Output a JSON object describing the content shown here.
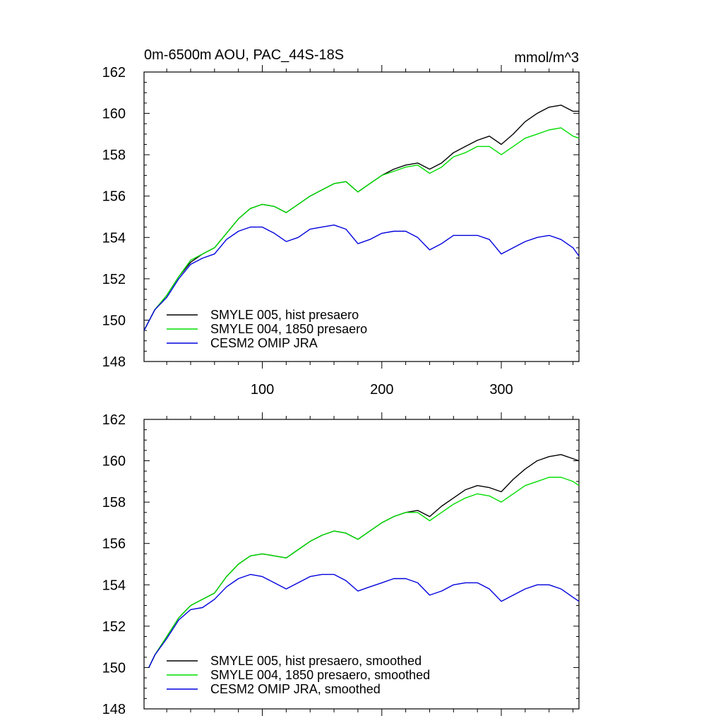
{
  "chart_data": [
    {
      "type": "line",
      "title": "0m-6500m AOU, PAC_44S-18S",
      "units": "mmol/m^3",
      "xlim": [
        1,
        365
      ],
      "ylim": [
        148,
        162
      ],
      "yticks": [
        148,
        150,
        152,
        154,
        156,
        158,
        160,
        162
      ],
      "xticks": [
        100,
        200,
        300
      ],
      "xtick_labels": [
        "100",
        "200",
        "300"
      ],
      "legend_position": "bottom-left",
      "x": [
        1,
        10,
        20,
        30,
        40,
        50,
        60,
        70,
        80,
        90,
        100,
        110,
        120,
        130,
        140,
        150,
        160,
        170,
        180,
        190,
        200,
        210,
        220,
        230,
        240,
        250,
        260,
        270,
        280,
        290,
        300,
        310,
        320,
        330,
        340,
        350,
        360,
        365
      ],
      "series": [
        {
          "name": "SMYLE 005, hist presaero",
          "color": "#000000",
          "values": [
            149.5,
            150.5,
            151.2,
            152.1,
            152.8,
            153.2,
            153.5,
            154.2,
            154.9,
            155.4,
            155.6,
            155.5,
            155.2,
            155.6,
            156.0,
            156.3,
            156.6,
            156.7,
            156.2,
            156.6,
            157.0,
            157.3,
            157.5,
            157.6,
            157.3,
            157.6,
            158.1,
            158.4,
            158.7,
            158.9,
            158.5,
            159.0,
            159.6,
            160.0,
            160.3,
            160.4,
            160.1,
            160.1
          ]
        },
        {
          "name": "SMYLE 004, 1850 presaero",
          "color": "#00dd00",
          "values": [
            149.5,
            150.5,
            151.2,
            152.1,
            152.9,
            153.2,
            153.5,
            154.2,
            154.9,
            155.4,
            155.6,
            155.5,
            155.2,
            155.6,
            156.0,
            156.3,
            156.6,
            156.7,
            156.2,
            156.6,
            157.0,
            157.2,
            157.4,
            157.5,
            157.1,
            157.4,
            157.9,
            158.1,
            158.4,
            158.4,
            158.0,
            158.4,
            158.8,
            159.0,
            159.2,
            159.3,
            158.9,
            158.8
          ]
        },
        {
          "name": "CESM2 OMIP JRA",
          "color": "#0000dd",
          "values": [
            149.5,
            150.5,
            151.1,
            152.0,
            152.7,
            153.0,
            153.2,
            153.9,
            154.3,
            154.5,
            154.5,
            154.2,
            153.8,
            154.0,
            154.4,
            154.5,
            154.6,
            154.4,
            153.7,
            153.9,
            154.2,
            154.3,
            154.3,
            154.0,
            153.4,
            153.7,
            154.1,
            154.1,
            154.1,
            153.9,
            153.2,
            153.5,
            153.8,
            154.0,
            154.1,
            153.9,
            153.5,
            153.1
          ]
        }
      ]
    },
    {
      "type": "line",
      "xlim": [
        1,
        365
      ],
      "ylim": [
        148,
        162
      ],
      "yticks": [
        148,
        150,
        152,
        154,
        156,
        158,
        160,
        162
      ],
      "xticks": [
        100,
        200,
        300
      ],
      "legend_position": "bottom-left",
      "x": [
        5,
        10,
        20,
        30,
        40,
        50,
        60,
        70,
        80,
        90,
        100,
        110,
        120,
        130,
        140,
        150,
        160,
        170,
        180,
        190,
        200,
        210,
        220,
        230,
        240,
        250,
        260,
        270,
        280,
        290,
        300,
        310,
        320,
        330,
        340,
        350,
        360,
        365
      ],
      "series": [
        {
          "name": "SMYLE 005, hist presaero, smoothed",
          "color": "#000000",
          "values": [
            150.0,
            150.6,
            151.5,
            152.4,
            153.0,
            153.3,
            153.6,
            154.4,
            155.0,
            155.4,
            155.5,
            155.4,
            155.3,
            155.7,
            156.1,
            156.4,
            156.6,
            156.5,
            156.2,
            156.6,
            157.0,
            157.3,
            157.5,
            157.6,
            157.3,
            157.8,
            158.2,
            158.6,
            158.8,
            158.7,
            158.5,
            159.1,
            159.6,
            160.0,
            160.2,
            160.3,
            160.1,
            160.0
          ]
        },
        {
          "name": "SMYLE 004, 1850 presaero, smoothed",
          "color": "#00dd00",
          "values": [
            150.0,
            150.6,
            151.5,
            152.4,
            153.0,
            153.3,
            153.6,
            154.4,
            155.0,
            155.4,
            155.5,
            155.4,
            155.3,
            155.7,
            156.1,
            156.4,
            156.6,
            156.5,
            156.2,
            156.6,
            157.0,
            157.3,
            157.5,
            157.5,
            157.1,
            157.5,
            157.9,
            158.2,
            158.4,
            158.3,
            158.0,
            158.4,
            158.8,
            159.0,
            159.2,
            159.2,
            159.0,
            158.8
          ]
        },
        {
          "name": "CESM2 OMIP JRA, smoothed",
          "color": "#0000dd",
          "values": [
            150.0,
            150.6,
            151.4,
            152.3,
            152.8,
            152.9,
            153.3,
            153.9,
            154.3,
            154.5,
            154.4,
            154.1,
            153.8,
            154.1,
            154.4,
            154.5,
            154.5,
            154.2,
            153.7,
            153.9,
            154.1,
            154.3,
            154.3,
            154.1,
            153.5,
            153.7,
            154.0,
            154.1,
            154.1,
            153.8,
            153.2,
            153.5,
            153.8,
            154.0,
            154.0,
            153.8,
            153.4,
            153.2
          ]
        }
      ]
    }
  ]
}
